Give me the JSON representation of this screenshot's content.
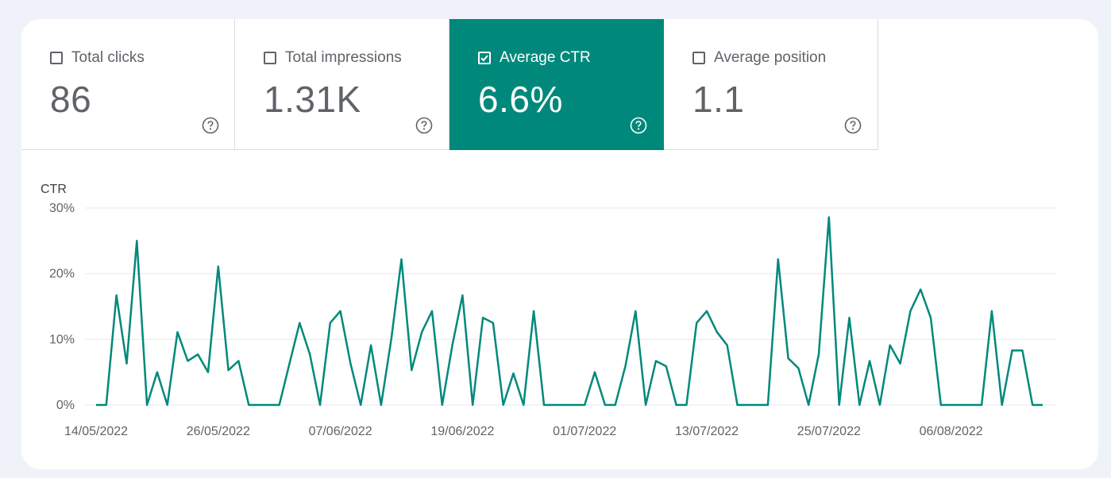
{
  "metrics": [
    {
      "label": "Total clicks",
      "value": "86",
      "checked": false
    },
    {
      "label": "Total impressions",
      "value": "1.31K",
      "checked": false
    },
    {
      "label": "Average CTR",
      "value": "6.6%",
      "checked": true
    },
    {
      "label": "Average position",
      "value": "1.1",
      "checked": false
    }
  ],
  "colors": {
    "accent": "#00897b",
    "line": "#00897b",
    "grid": "#e8eaed",
    "text": "#5f6368",
    "background": "#eff3f9"
  },
  "icons": {
    "checkbox": "checkbox-icon",
    "help": "help-circle-icon"
  },
  "chart_data": {
    "type": "line",
    "ylabel": "CTR",
    "ylim": [
      0,
      30
    ],
    "y_ticks": [
      "0%",
      "10%",
      "20%",
      "30%"
    ],
    "y_tick_values": [
      0,
      10,
      20,
      30
    ],
    "x_tick_labels": [
      "14/05/2022",
      "26/05/2022",
      "07/06/2022",
      "19/06/2022",
      "01/07/2022",
      "13/07/2022",
      "25/07/2022",
      "06/08/2022"
    ],
    "grid": true,
    "series": [
      {
        "values": [
          0,
          0,
          16.7,
          6.3,
          25,
          0,
          5,
          0,
          11.1,
          6.7,
          7.7,
          5,
          21.1,
          5.3,
          6.7,
          0,
          0,
          0,
          0,
          6.3,
          12.5,
          7.7,
          0,
          12.5,
          14.3,
          6.3,
          0,
          9.1,
          0,
          10,
          22.2,
          5.3,
          11.1,
          14.3,
          0,
          9.1,
          16.7,
          0,
          13.3,
          12.5,
          0,
          4.8,
          0,
          14.3,
          0,
          0,
          0,
          0,
          0,
          5,
          0,
          0,
          5.9,
          14.3,
          0,
          6.7,
          5.9,
          0,
          0,
          12.5,
          14.3,
          11.1,
          9.1,
          0,
          0,
          0,
          0,
          22.2,
          7.1,
          5.6,
          0,
          7.7,
          28.6,
          0,
          13.3,
          0,
          6.7,
          0,
          9.1,
          6.3,
          14.3,
          17.6,
          13.3,
          0,
          0,
          0,
          0,
          0,
          14.3,
          0,
          8.3,
          8.3,
          0,
          0
        ]
      }
    ]
  }
}
